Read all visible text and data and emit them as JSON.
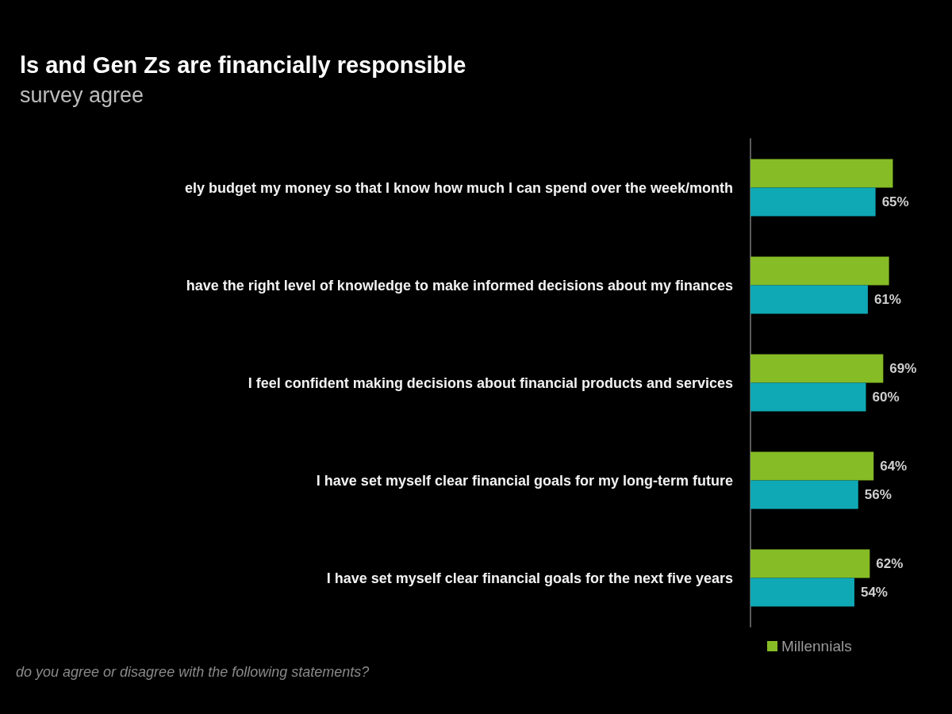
{
  "chart_data": {
    "type": "bar",
    "orientation": "horizontal",
    "title": "ls and Gen Zs are financially responsible",
    "subtitle": "survey agree",
    "categories": [
      "ely budget my money so that I know how much I can spend over the week/month",
      "have the right level of knowledge to make informed decisions about my finances",
      "I feel confident making decisions about financial products and services",
      "I have set myself clear financial goals for my long-term future",
      "I have set myself clear financial goals for the next five years"
    ],
    "series": [
      {
        "name": "Millennials",
        "color": "#86bc25",
        "values": [
          74,
          72,
          69,
          64,
          62
        ],
        "value_labels": [
          null,
          null,
          "69%",
          "64%",
          "62%"
        ]
      },
      {
        "color": "#0fa9b5",
        "values": [
          65,
          61,
          60,
          56,
          54
        ],
        "value_labels": [
          "65%",
          "61%",
          "60%",
          "56%",
          "54%"
        ]
      }
    ],
    "legend": "bottom left",
    "annotations": [
      "do you agree or disagree with the following statements?"
    ]
  }
}
